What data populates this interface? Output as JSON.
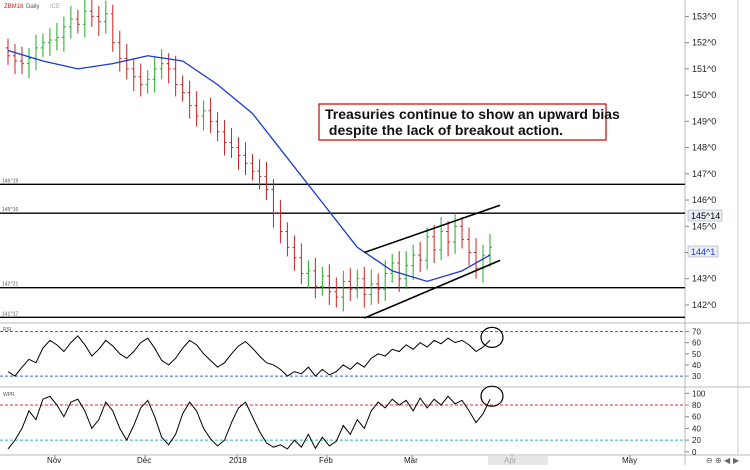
{
  "header": {
    "symbol": "ZBM18",
    "interval": "Daily",
    "source": "ICE"
  },
  "annotation": {
    "line1": "Treasuries continue to show an upward bias",
    "line2": " despite the lack of breakout action."
  },
  "colors": {
    "up_bar": "#22aa22",
    "down_bar": "#cc2222",
    "moving_average": "#1a3acc",
    "horizontal_line": "#000000",
    "overbought": "#dd3333",
    "oversold_rsi": "#3366cc",
    "oversold_wpr": "#22bbbb",
    "annotation_border": "#cc0000",
    "price_label_bg": "#e8eef8",
    "price_label_current": "#1a3acc"
  },
  "chart_data": [
    {
      "type": "ohlc",
      "name": "price",
      "x_labels": [
        "Nov",
        "Dec",
        "2018",
        "Feb",
        "Mar",
        "Apr",
        "May"
      ],
      "y_ticks": [
        "142^0",
        "143^0",
        "144^0",
        "145^0",
        "146^0",
        "147^0",
        "148^0",
        "149^0",
        "150^0",
        "151^0",
        "152^0",
        "153^0"
      ],
      "y_ticks_num": [
        142,
        143,
        144,
        145,
        146,
        147,
        148,
        149,
        150,
        151,
        152,
        153
      ],
      "ylim": [
        141.35,
        153.55
      ],
      "horizontal_levels": [
        {
          "label": "146^19",
          "value": 146.6
        },
        {
          "label": "145^16",
          "value": 145.5
        },
        {
          "label": "142^21",
          "value": 142.66
        },
        {
          "label": "141^17",
          "value": 141.53
        }
      ],
      "price_labels": {
        "level": "145^14",
        "level_value": 145.44,
        "current": "144^1",
        "current_value": 144.03
      },
      "closes": [
        151.5,
        151.3,
        151.2,
        151.4,
        151.8,
        152.0,
        152.1,
        152.2,
        152.6,
        152.9,
        152.7,
        153.2,
        153.0,
        152.8,
        153.1,
        152.0,
        151.4,
        151.0,
        150.7,
        150.4,
        150.6,
        151.0,
        151.2,
        151.0,
        150.4,
        150.1,
        149.6,
        149.2,
        149.4,
        149.0,
        148.6,
        148.2,
        148.0,
        147.7,
        147.4,
        147.1,
        146.9,
        146.4,
        145.5,
        144.8,
        144.2,
        143.8,
        143.2,
        143.3,
        142.7,
        143.1,
        142.5,
        142.3,
        142.9,
        142.6,
        143.0,
        142.4,
        142.8,
        142.6,
        143.2,
        143.6,
        143.0,
        143.5,
        143.9,
        143.7,
        144.6,
        144.1,
        144.8,
        144.4,
        145.0,
        144.5,
        144.0,
        143.4,
        143.9,
        144.2
      ],
      "ma_x": [
        0,
        5,
        10,
        15,
        20,
        25,
        30,
        35,
        40,
        45,
        50,
        55,
        60,
        65,
        69
      ],
      "ma_values": [
        151.7,
        151.3,
        151.0,
        151.2,
        151.5,
        151.3,
        150.4,
        149.3,
        147.6,
        145.9,
        144.2,
        143.3,
        142.9,
        143.3,
        143.9
      ],
      "trend_lines": [
        {
          "x": [
            51,
            69
          ],
          "y": [
            144.0,
            145.8
          ]
        },
        {
          "x": [
            51,
            69
          ],
          "y": [
            141.5,
            143.7
          ]
        }
      ]
    },
    {
      "type": "line",
      "name": "RSI",
      "y_ticks": [
        "30",
        "40",
        "50",
        "60",
        "70"
      ],
      "y_ticks_num": [
        30,
        40,
        50,
        60,
        70
      ],
      "ylim": [
        22,
        74
      ],
      "overbought": 70,
      "oversold": 30,
      "values": [
        34,
        30,
        38,
        45,
        42,
        55,
        62,
        58,
        52,
        60,
        66,
        58,
        48,
        54,
        62,
        57,
        50,
        46,
        52,
        60,
        64,
        55,
        44,
        40,
        46,
        55,
        62,
        58,
        50,
        44,
        38,
        42,
        50,
        57,
        61,
        55,
        48,
        42,
        40,
        36,
        30,
        34,
        32,
        38,
        30,
        36,
        31,
        34,
        40,
        36,
        42,
        38,
        46,
        50,
        48,
        54,
        52,
        58,
        54,
        60,
        56,
        62,
        59,
        64,
        60,
        62,
        58,
        52,
        56,
        62
      ]
    },
    {
      "type": "line",
      "name": "WPR",
      "y_ticks": [
        "0",
        "20",
        "40",
        "60",
        "80",
        "100"
      ],
      "y_ticks_num": [
        0,
        20,
        40,
        60,
        80,
        100
      ],
      "ylim": [
        -2,
        104
      ],
      "overbought": 80,
      "oversold": 20,
      "values": [
        5,
        20,
        40,
        70,
        55,
        90,
        95,
        80,
        60,
        85,
        90,
        70,
        40,
        55,
        85,
        70,
        40,
        20,
        45,
        75,
        88,
        60,
        25,
        12,
        30,
        65,
        85,
        70,
        40,
        22,
        10,
        20,
        50,
        75,
        85,
        60,
        35,
        15,
        8,
        12,
        5,
        20,
        8,
        30,
        6,
        25,
        10,
        18,
        45,
        30,
        55,
        40,
        70,
        85,
        75,
        90,
        80,
        88,
        70,
        92,
        75,
        90,
        80,
        95,
        82,
        88,
        70,
        50,
        65,
        90
      ]
    }
  ],
  "toolbar": [
    "⊖",
    "⊕",
    "◀",
    "▶"
  ]
}
